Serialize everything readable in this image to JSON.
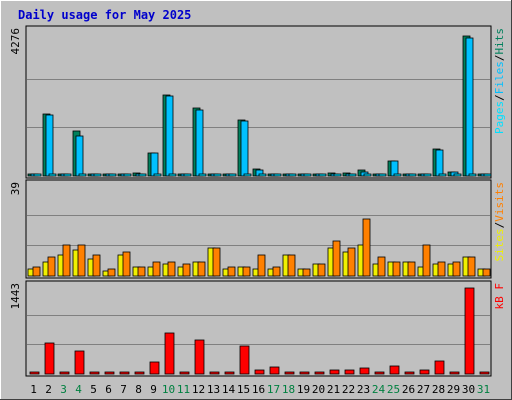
{
  "title": "Daily usage for May 2025",
  "colors": {
    "background": "#c0c0c0",
    "plot_bg": "#c0c0c0",
    "grid": "#808080",
    "title": "#0000cc",
    "hits": "#00805c",
    "files": "#00c0ff",
    "pages": "#00e0ff",
    "sites": "#f0f000",
    "visits": "#ff8000",
    "kbytes": "#ff0000",
    "weekday": "#000000",
    "weekend": "#008040"
  },
  "chart_data": [
    {
      "type": "bar",
      "name": "hits-files-pages",
      "max_label": "4276",
      "ylim": [
        0,
        4276
      ],
      "legend": [
        "Pages",
        "Files",
        "Hits"
      ],
      "categories": [
        "1",
        "2",
        "3",
        "4",
        "5",
        "6",
        "7",
        "8",
        "9",
        "10",
        "11",
        "12",
        "13",
        "14",
        "15",
        "16",
        "17",
        "18",
        "19",
        "20",
        "21",
        "22",
        "23",
        "24",
        "25",
        "26",
        "27",
        "28",
        "29",
        "30",
        "31"
      ],
      "series": [
        {
          "name": "Hits",
          "values": [
            0,
            1810,
            0,
            1310,
            0,
            0,
            0,
            90,
            680,
            2380,
            0,
            1980,
            40,
            0,
            1640,
            210,
            0,
            0,
            0,
            70,
            80,
            100,
            180,
            0,
            440,
            0,
            60,
            780,
            130,
            4100,
            0
          ]
        },
        {
          "name": "Files",
          "values": [
            0,
            1780,
            0,
            1180,
            0,
            0,
            0,
            60,
            660,
            2330,
            0,
            1940,
            25,
            0,
            1600,
            180,
            0,
            0,
            0,
            40,
            50,
            70,
            110,
            0,
            430,
            0,
            40,
            770,
            120,
            4040,
            0
          ]
        },
        {
          "name": "Pages",
          "values": [
            0,
            0,
            0,
            0,
            0,
            0,
            0,
            0,
            0,
            0,
            0,
            0,
            0,
            0,
            0,
            0,
            0,
            0,
            0,
            0,
            0,
            0,
            0,
            0,
            0,
            0,
            0,
            0,
            0,
            0,
            0
          ]
        }
      ]
    },
    {
      "type": "bar",
      "name": "visits-sites",
      "max_label": "39",
      "ylim": [
        0,
        39
      ],
      "legend": [
        "Sites",
        "Visits"
      ],
      "categories": [
        "1",
        "2",
        "3",
        "4",
        "5",
        "6",
        "7",
        "8",
        "9",
        "10",
        "11",
        "12",
        "13",
        "14",
        "15",
        "16",
        "17",
        "18",
        "19",
        "20",
        "21",
        "22",
        "23",
        "24",
        "25",
        "26",
        "27",
        "28",
        "29",
        "30",
        "31"
      ],
      "series": [
        {
          "name": "Sites",
          "values": [
            3,
            6,
            9,
            11,
            7,
            2,
            9,
            4,
            4,
            5,
            4,
            6,
            12,
            3,
            4,
            3,
            3,
            9,
            3,
            5,
            12,
            10,
            13,
            5,
            6,
            6,
            4,
            5,
            5,
            8,
            3
          ]
        },
        {
          "name": "Visits",
          "values": [
            4,
            8,
            13,
            13,
            9,
            3,
            10,
            4,
            6,
            6,
            5,
            6,
            12,
            4,
            4,
            9,
            4,
            9,
            3,
            5,
            15,
            12,
            24,
            8,
            6,
            6,
            13,
            6,
            6,
            8,
            3
          ]
        }
      ]
    },
    {
      "type": "bar",
      "name": "kbytes",
      "max_label": "1443",
      "ylim": [
        0,
        1443
      ],
      "legend": [
        "kB F"
      ],
      "categories": [
        "1",
        "2",
        "3",
        "4",
        "5",
        "6",
        "7",
        "8",
        "9",
        "10",
        "11",
        "12",
        "13",
        "14",
        "15",
        "16",
        "17",
        "18",
        "19",
        "20",
        "21",
        "22",
        "23",
        "24",
        "25",
        "26",
        "27",
        "28",
        "29",
        "30",
        "31"
      ],
      "series": [
        {
          "name": "kB F",
          "values": [
            0,
            500,
            0,
            380,
            20,
            20,
            20,
            40,
            190,
            660,
            0,
            550,
            20,
            0,
            460,
            70,
            120,
            0,
            0,
            40,
            60,
            60,
            100,
            20,
            130,
            40,
            60,
            210,
            40,
            1400,
            0
          ]
        }
      ]
    }
  ],
  "x_axis": {
    "labels": [
      "1",
      "2",
      "3",
      "4",
      "5",
      "6",
      "7",
      "8",
      "9",
      "10",
      "11",
      "12",
      "13",
      "14",
      "15",
      "16",
      "17",
      "18",
      "19",
      "20",
      "21",
      "22",
      "23",
      "24",
      "25",
      "26",
      "27",
      "28",
      "29",
      "30",
      "31"
    ],
    "weekend": [
      false,
      false,
      true,
      true,
      false,
      false,
      false,
      false,
      false,
      true,
      true,
      false,
      false,
      false,
      false,
      false,
      true,
      true,
      false,
      false,
      false,
      false,
      false,
      true,
      true,
      false,
      false,
      false,
      false,
      false,
      true
    ]
  }
}
